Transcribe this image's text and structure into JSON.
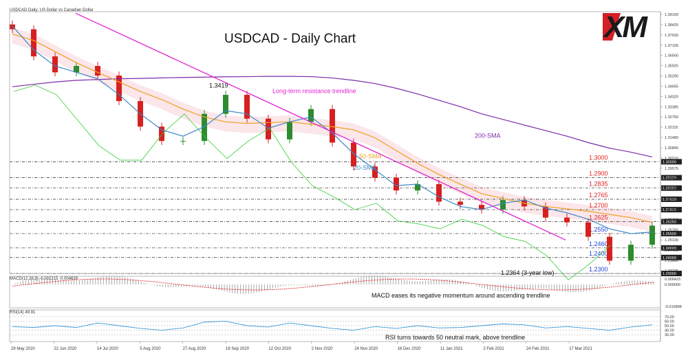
{
  "header": {
    "price_title": "USDCAD Daily:  US Dollar vs Canadian Dollar",
    "macd_title": "MACD(12,26,9) -0.002215 -0.004639",
    "rsi_title": "RSI(14) 49.91"
  },
  "logo_text": "XM",
  "chart_data": [
    {
      "type": "line",
      "title": "USDCAD - Daily Chart",
      "x_ticks": [
        "29 May 2020",
        "22 Jun 2020",
        "14 Jul 2020",
        "5 Aug 2020",
        "27 Aug 2020",
        "18 Sep 2020",
        "12 Oct 2020",
        "2 Nov 2020",
        "24 Nov 2020",
        "16 Dec 2020",
        "11 Jan 2021",
        "2 Feb 2021",
        "24 Feb 2021",
        "17 Mar 2021"
      ],
      "y_ticks": [
        "1.39100",
        "1.38425",
        "1.37630",
        "1.37195",
        "1.36560",
        "1.35925",
        "1.35290",
        "1.34655",
        "1.34020",
        "1.33385",
        "1.32750",
        "1.32115",
        "1.31480",
        "1.30845",
        "1.30210",
        "1.29575",
        "1.28940",
        "1.28305",
        "1.27670",
        "1.27035",
        "1.26400",
        "1.25765",
        "1.25130",
        "1.24495",
        "1.23860",
        "1.23225"
      ],
      "ylim": [
        1.23,
        1.394
      ],
      "series": [
        {
          "name": "200-SMA",
          "color": "#7b2aa8",
          "values": [
            1.347,
            1.3485,
            1.35,
            1.351,
            1.3515,
            1.352,
            1.3522,
            1.3525,
            1.3528,
            1.353,
            1.3532,
            1.3533,
            1.3535,
            1.3535,
            1.3533,
            1.3525,
            1.351,
            1.349,
            1.346,
            1.3425,
            1.3385,
            1.3345,
            1.33,
            1.3265,
            1.323,
            1.3195,
            1.316,
            1.312,
            1.3085,
            1.306,
            1.303
          ]
        },
        {
          "name": "50-SMA",
          "color": "#f0a020",
          "values": [
            1.38,
            1.376,
            1.369,
            1.362,
            1.356,
            1.35,
            1.344,
            1.339,
            1.333,
            1.328,
            1.325,
            1.324,
            1.3245,
            1.325,
            1.3235,
            1.322,
            1.32,
            1.315,
            1.307,
            1.299,
            1.292,
            1.286,
            1.28,
            1.277,
            1.274,
            1.272,
            1.2705,
            1.269,
            1.267,
            1.265,
            1.262
          ]
        },
        {
          "name": "20-SMA",
          "color": "#3a86c8",
          "values": [
            1.385,
            1.37,
            1.36,
            1.356,
            1.352,
            1.342,
            1.33,
            1.32,
            1.316,
            1.322,
            1.332,
            1.33,
            1.321,
            1.325,
            1.328,
            1.318,
            1.305,
            1.295,
            1.285,
            1.286,
            1.278,
            1.272,
            1.27,
            1.274,
            1.276,
            1.271,
            1.268,
            1.264,
            1.258,
            1.255,
            1.256
          ]
        }
      ],
      "price": [
        1.383,
        1.366,
        1.356,
        1.36,
        1.354,
        1.338,
        1.322,
        1.313,
        1.313,
        1.33,
        1.3419,
        1.327,
        1.314,
        1.325,
        1.333,
        1.312,
        1.297,
        1.29,
        1.282,
        1.286,
        1.275,
        1.273,
        1.27,
        1.276,
        1.272,
        1.265,
        1.262,
        1.253,
        1.238,
        1.248,
        1.26
      ],
      "horizontal_levels": [
        {
          "value": 1.3,
          "label": "1.3000",
          "color": "#e02020"
        },
        {
          "value": 1.29,
          "label": "1.2900",
          "color": "#e02020"
        },
        {
          "value": 1.2835,
          "label": "1.2835",
          "color": "#e02020"
        },
        {
          "value": 1.2765,
          "label": "1.2765",
          "color": "#e02020"
        },
        {
          "value": 1.27,
          "label": "1.2700",
          "color": "#e02020"
        },
        {
          "value": 1.2625,
          "label": "1.2625",
          "color": "#e02020"
        },
        {
          "value": 1.255,
          "label": "1.2550",
          "color": "#1f3fd8"
        },
        {
          "value": 1.246,
          "label": "1.2460",
          "color": "#1f3fd8"
        },
        {
          "value": 1.24,
          "label": "1.2400",
          "color": "#1f3fd8"
        },
        {
          "value": 1.23,
          "label": "1.2300",
          "color": "#1f3fd8"
        }
      ],
      "level_tags": [
        "1.30000",
        "1.29000",
        "1.28350",
        "1.27650",
        "1.27000",
        "1.26250",
        "1.25500",
        "1.24600",
        "1.24000",
        "1.23000"
      ],
      "annotations": {
        "peak": "1.3419",
        "trendline": "Long-term resistance trendline",
        "sma200": "200-SMA",
        "sma50": "50-SMA",
        "sma20": "20-SMA",
        "low": "1.2364 (3-year low)"
      }
    },
    {
      "type": "bar",
      "title": "MACD(12,26,9) -0.002215 -0.004639",
      "y_ticks": [
        "0.006423",
        "0.000000",
        "-0.010898"
      ],
      "annotation": "MACD eases its negative momentum around ascending trendline"
    },
    {
      "type": "line",
      "title": "RSI(14) 49.91",
      "y_ticks": [
        "70.00",
        "60.00",
        "50.00",
        "40.00",
        "30.00"
      ],
      "ylim": [
        15,
        85
      ],
      "values": [
        48,
        46,
        50,
        46,
        56,
        50,
        44,
        40,
        45,
        58,
        60,
        50,
        47,
        56,
        50,
        44,
        40,
        48,
        44,
        50,
        45,
        46,
        50,
        54,
        52,
        45,
        48,
        44,
        40,
        47,
        52
      ],
      "annotation": "RSI turns towards 50 neutral mark, above trendline"
    }
  ],
  "colors": {
    "up": "#2e8b2e",
    "down": "#d62020",
    "trendline": "#e020d0",
    "ichimoku": "#f4b8c0",
    "chikou": "#33cc33"
  }
}
